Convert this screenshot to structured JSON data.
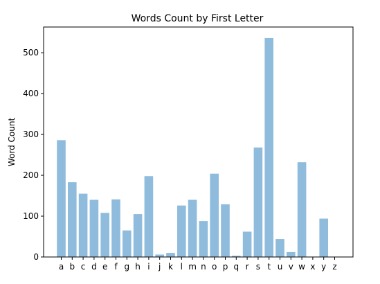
{
  "chart_data": {
    "type": "bar",
    "title": "Words Count by First Letter",
    "xlabel": "",
    "ylabel": "Word Count",
    "categories": [
      "a",
      "b",
      "c",
      "d",
      "e",
      "f",
      "g",
      "h",
      "i",
      "j",
      "k",
      "l",
      "m",
      "n",
      "o",
      "p",
      "q",
      "r",
      "s",
      "t",
      "u",
      "v",
      "w",
      "x",
      "y",
      "z"
    ],
    "values": [
      286,
      183,
      155,
      140,
      108,
      141,
      65,
      105,
      198,
      6,
      10,
      126,
      140,
      88,
      204,
      129,
      3,
      62,
      268,
      536,
      44,
      12,
      232,
      0,
      94,
      0
    ],
    "ylim": [
      0,
      563
    ],
    "yticks": [
      0,
      100,
      200,
      300,
      400,
      500
    ],
    "bar_color": "#8fbcdc",
    "grid": false
  }
}
